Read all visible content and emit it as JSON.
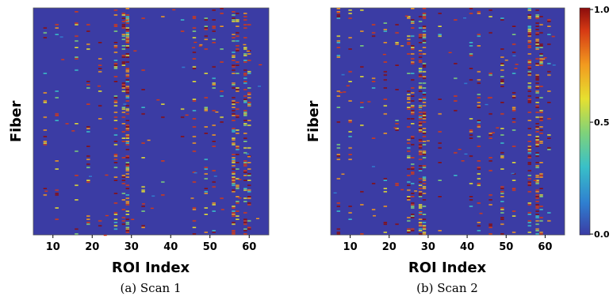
{
  "chart_data": [
    {
      "type": "heatmap",
      "caption": "(a) Scan 1",
      "xlabel": "ROI Index",
      "ylabel": "Fiber",
      "xlim": [
        5,
        65
      ],
      "xticks": [
        10,
        20,
        30,
        40,
        50,
        60
      ],
      "columns": [
        {
          "roi": 8,
          "density": 0.15
        },
        {
          "roi": 11,
          "density": 0.18
        },
        {
          "roi": 16,
          "density": 0.25
        },
        {
          "roi": 19,
          "density": 0.3
        },
        {
          "roi": 22,
          "density": 0.12
        },
        {
          "roi": 26,
          "density": 0.6
        },
        {
          "roi": 28,
          "density": 0.45
        },
        {
          "roi": 29,
          "density": 0.95
        },
        {
          "roi": 33,
          "density": 0.1
        },
        {
          "roi": 38,
          "density": 0.08
        },
        {
          "roi": 43,
          "density": 0.12
        },
        {
          "roi": 46,
          "density": 0.3
        },
        {
          "roi": 49,
          "density": 0.35
        },
        {
          "roi": 51,
          "density": 0.3
        },
        {
          "roi": 53,
          "density": 0.2
        },
        {
          "roi": 56,
          "density": 0.85
        },
        {
          "roi": 57,
          "density": 0.4
        },
        {
          "roi": 59,
          "density": 0.8
        },
        {
          "roi": 60,
          "density": 0.4
        }
      ]
    },
    {
      "type": "heatmap",
      "caption": "(b) Scan 2",
      "xlabel": "ROI Index",
      "ylabel": "Fiber",
      "xlim": [
        5,
        65
      ],
      "xticks": [
        10,
        20,
        30,
        40,
        50,
        60
      ],
      "columns": [
        {
          "roi": 7,
          "density": 0.3
        },
        {
          "roi": 10,
          "density": 0.15
        },
        {
          "roi": 13,
          "density": 0.15
        },
        {
          "roi": 16,
          "density": 0.2
        },
        {
          "roi": 19,
          "density": 0.35
        },
        {
          "roi": 22,
          "density": 0.15
        },
        {
          "roi": 25,
          "density": 0.45
        },
        {
          "roi": 26,
          "density": 0.55
        },
        {
          "roi": 28,
          "density": 0.9
        },
        {
          "roi": 29,
          "density": 0.75
        },
        {
          "roi": 33,
          "density": 0.12
        },
        {
          "roi": 37,
          "density": 0.1
        },
        {
          "roi": 41,
          "density": 0.2
        },
        {
          "roi": 43,
          "density": 0.45
        },
        {
          "roi": 46,
          "density": 0.3
        },
        {
          "roi": 49,
          "density": 0.35
        },
        {
          "roi": 52,
          "density": 0.25
        },
        {
          "roi": 56,
          "density": 0.75
        },
        {
          "roi": 58,
          "density": 0.85
        },
        {
          "roi": 59,
          "density": 0.55
        },
        {
          "roi": 61,
          "density": 0.25
        }
      ]
    }
  ],
  "colorbar": {
    "range": [
      0.0,
      1.0
    ],
    "ticks": [
      "1.0",
      "0.5",
      "0.0"
    ],
    "colors": [
      "#3b3ca4",
      "#2f7fd0",
      "#39c0c8",
      "#7fd27a",
      "#e6e030",
      "#f29a1f",
      "#d63a14",
      "#8b0c0c"
    ]
  }
}
